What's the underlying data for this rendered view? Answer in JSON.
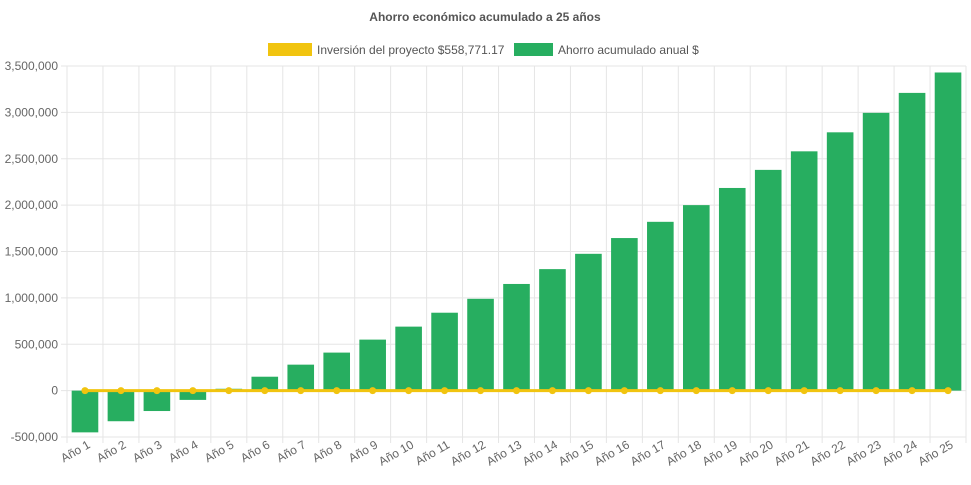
{
  "chart_data": {
    "type": "bar",
    "title": "Ahorro económico acumulado a 25 años",
    "categories": [
      "Año 1",
      "Año 2",
      "Año 3",
      "Año 4",
      "Año 5",
      "Año 6",
      "Año 7",
      "Año 8",
      "Año 9",
      "Año 10",
      "Año 11",
      "Año 12",
      "Año 13",
      "Año 14",
      "Año 15",
      "Año 16",
      "Año 17",
      "Año 18",
      "Año 19",
      "Año 20",
      "Año 21",
      "Año 22",
      "Año 23",
      "Año 24",
      "Año 25"
    ],
    "series": [
      {
        "name": "Ahorro acumulado anual $",
        "type": "bar",
        "color": "#27ae60",
        "values": [
          -450000,
          -330000,
          -220000,
          -100000,
          20000,
          150000,
          280000,
          410000,
          550000,
          690000,
          840000,
          990000,
          1150000,
          1310000,
          1475000,
          1645000,
          1820000,
          2000000,
          2185000,
          2380000,
          2580000,
          2785000,
          2995000,
          3210000,
          3430000
        ]
      },
      {
        "name": "Inversión del proyecto $558,771.17",
        "type": "line",
        "color": "#f1c40f",
        "values": [
          0,
          0,
          0,
          0,
          0,
          0,
          0,
          0,
          0,
          0,
          0,
          0,
          0,
          0,
          0,
          0,
          0,
          0,
          0,
          0,
          0,
          0,
          0,
          0,
          0
        ]
      }
    ],
    "legend": {
      "position": "top",
      "items": [
        {
          "label": "Inversión del proyecto $558,771.17",
          "color": "#f1c40f"
        },
        {
          "label": "Ahorro acumulado anual $",
          "color": "#27ae60"
        }
      ]
    },
    "yticks": [
      "-500,000",
      "0",
      "500,000",
      "1,000,000",
      "1,500,000",
      "2,000,000",
      "2,500,000",
      "3,000,000",
      "3,500,000"
    ],
    "ytick_values": [
      -500000,
      0,
      500000,
      1000000,
      1500000,
      2000000,
      2500000,
      3000000,
      3500000
    ],
    "ylim": [
      -500000,
      3500000
    ],
    "grid": true
  }
}
